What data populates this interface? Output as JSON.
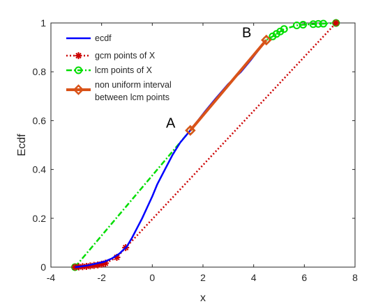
{
  "chart_data": {
    "type": "line",
    "xlabel": "x",
    "ylabel": "Ecdf",
    "xlim": [
      -4,
      8
    ],
    "ylim": [
      0,
      1
    ],
    "xticks": [
      -4,
      -2,
      0,
      2,
      4,
      6,
      8
    ],
    "yticks": [
      0,
      0.2,
      0.4,
      0.6,
      0.8,
      1
    ],
    "legend_position": "top-left",
    "grid": false,
    "series": [
      {
        "name": "ecdf",
        "color": "#0000ff",
        "style": "solid",
        "x": [
          -3.05,
          -2.8,
          -2.5,
          -2.2,
          -1.9,
          -1.6,
          -1.3,
          -1.0,
          -0.8,
          -0.6,
          -0.4,
          -0.2,
          0.0,
          0.2,
          0.5,
          0.8,
          1.1,
          1.5,
          1.8,
          2.1,
          2.5,
          3.0,
          3.5,
          3.9,
          4.2,
          4.5
        ],
        "y": [
          0.0,
          0.003,
          0.008,
          0.015,
          0.022,
          0.035,
          0.055,
          0.085,
          0.12,
          0.16,
          0.2,
          0.245,
          0.29,
          0.34,
          0.4,
          0.46,
          0.51,
          0.56,
          0.6,
          0.64,
          0.69,
          0.75,
          0.8,
          0.85,
          0.89,
          0.93
        ]
      },
      {
        "name": "gcm points of X",
        "color": "#cc0000",
        "style": "dotted",
        "marker": "asterisk",
        "x": [
          -3.05,
          -2.9,
          -2.75,
          -2.6,
          -2.45,
          -2.3,
          -2.15,
          -2.0,
          -1.85,
          -1.4,
          -1.05,
          7.25
        ],
        "y": [
          0.0,
          0.001,
          0.002,
          0.003,
          0.005,
          0.007,
          0.009,
          0.012,
          0.016,
          0.04,
          0.08,
          1.0
        ]
      },
      {
        "name": "lcm points of X",
        "color": "#00dd00",
        "style": "dashdot",
        "marker": "circle",
        "x": [
          -3.05,
          1.5,
          4.5,
          4.75,
          4.9,
          5.05,
          5.2,
          5.7,
          5.95,
          6.35,
          6.55,
          6.75,
          7.25
        ],
        "y": [
          0.0,
          0.56,
          0.93,
          0.945,
          0.955,
          0.965,
          0.975,
          0.99,
          0.993,
          0.995,
          0.996,
          0.997,
          1.0
        ]
      },
      {
        "name": "non uniform interval between lcm points",
        "color": "#d95319",
        "style": "solid",
        "marker": "diamond",
        "x": [
          1.5,
          4.5
        ],
        "y": [
          0.56,
          0.93
        ]
      }
    ],
    "annotations": [
      {
        "text": "A",
        "x": 1.0,
        "y": 0.56
      },
      {
        "text": "B",
        "x": 4.0,
        "y": 0.93
      }
    ],
    "legend": {
      "entries": [
        {
          "lines": [
            "ecdf"
          ]
        },
        {
          "lines": [
            "gcm points of X"
          ]
        },
        {
          "lines": [
            "lcm points of X"
          ]
        },
        {
          "lines": [
            "non uniform interval",
            "between lcm points"
          ]
        }
      ]
    }
  }
}
